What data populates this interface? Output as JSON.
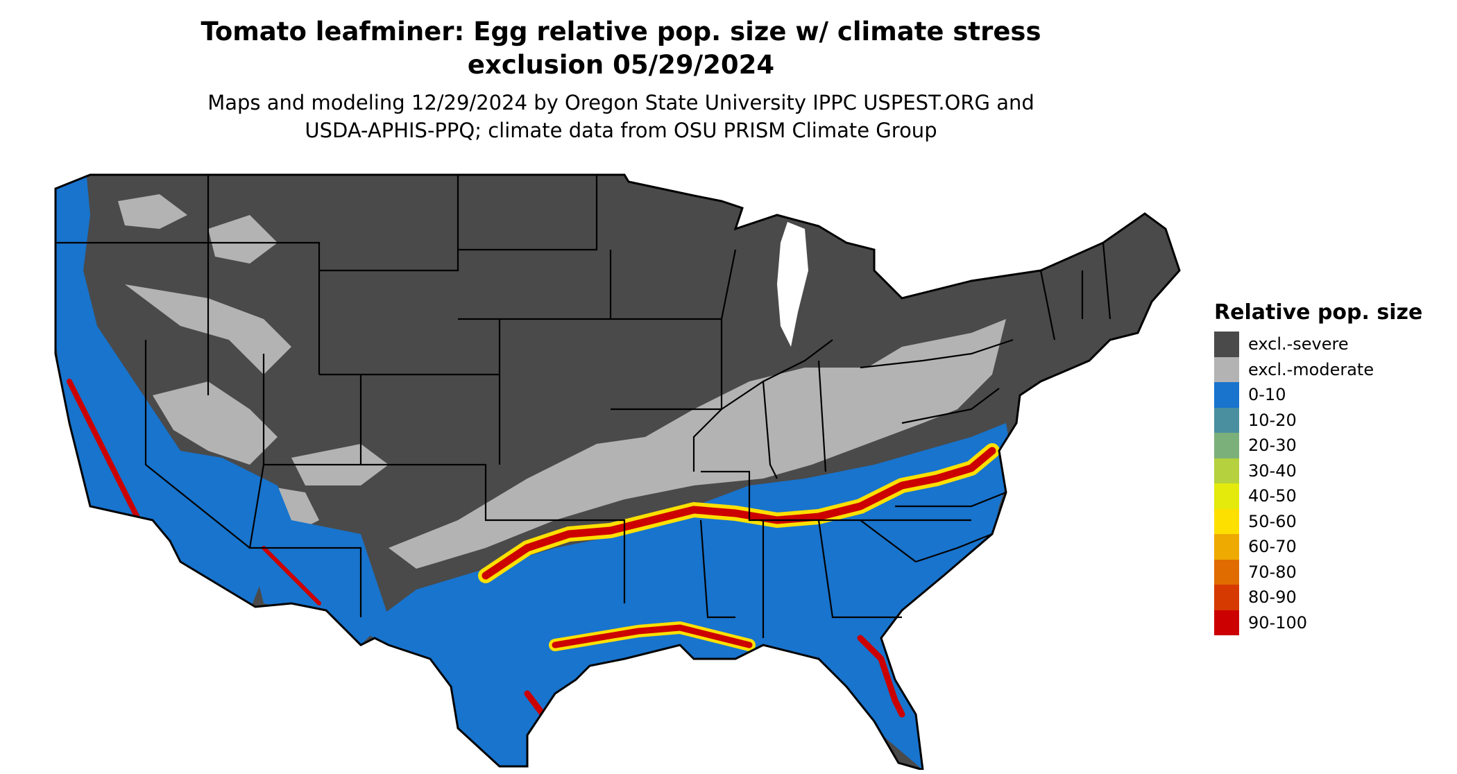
{
  "title": {
    "line1": "Tomato leafminer: Egg relative pop. size w/ climate stress",
    "line2": "exclusion 05/29/2024"
  },
  "subtitle": {
    "line1": "Maps and modeling 12/29/2024 by Oregon State University IPPC USPEST.ORG and",
    "line2": "USDA-APHIS-PPQ; climate data from OSU PRISM Climate Group"
  },
  "legend": {
    "title": "Relative pop. size",
    "items": [
      {
        "label": "excl.-severe",
        "color": "#4a4a4a"
      },
      {
        "label": "excl.-moderate",
        "color": "#b3b3b3"
      },
      {
        "label": "0-10",
        "color": "#1874cd"
      },
      {
        "label": "10-20",
        "color": "#4a8fa0"
      },
      {
        "label": "20-30",
        "color": "#7cb07a"
      },
      {
        "label": "30-40",
        "color": "#b5d13e"
      },
      {
        "label": "40-50",
        "color": "#e3ea0c"
      },
      {
        "label": "50-60",
        "color": "#fde000"
      },
      {
        "label": "60-70",
        "color": "#eeaa00"
      },
      {
        "label": "70-80",
        "color": "#e06c00"
      },
      {
        "label": "80-90",
        "color": "#d63a00"
      },
      {
        "label": "90-100",
        "color": "#cc0000"
      }
    ]
  },
  "map": {
    "region": "Contiguous United States",
    "zone_colors": {
      "excl_severe": "#4a4a4a",
      "excl_moderate": "#b3b3b3",
      "low": "#1874cd",
      "mid": "#fde000",
      "high": "#cc0000"
    }
  }
}
